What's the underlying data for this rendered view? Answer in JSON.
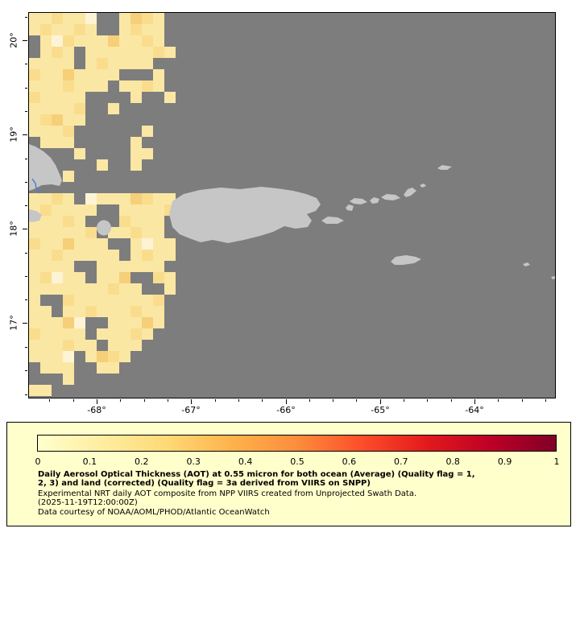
{
  "map": {
    "ocean_color": "#7d7d7d",
    "land_color": "#c6c6c6",
    "river_color": "#4d7fd0",
    "y_axis": {
      "labels": [
        "20°",
        "19°",
        "18°",
        "17°"
      ]
    },
    "x_axis": {
      "labels": [
        "-68°",
        "-67°",
        "-66°",
        "-65°",
        "-64°"
      ]
    },
    "mosaic": {
      "cell": 14,
      "palette": {
        "a": "#fdf4d5",
        "b": "#fbe7a4",
        "c": "#f9dd8d",
        "d": "#f6cf78"
      },
      "rows": [
        "bbcbba..bdcb.",
        "bcbbcb..bcbb.",
        ".bacbbbdbbcb.",
        ".bcb.bbbbbbcb",
        "bbbb.bcbbbb..",
        "cbbdbbbb...b.",
        "bbbcbbb.bbcb.",
        "cbbbb....b..b",
        "bbbbc..b.....",
        "bcdbb........",
        "bbbc......b..",
        ".bbb.....b...",
        "....b....bb..",
        "......b..b...",
        "...b.........",
        ".............",
        "bbcb.abbbdcbb",
        "bcbbbb..bbbbc",
        "bbbcb...cbbb.",
        "bbbbbc.bbcbb.",
        "cbbdbbb..babb",
        "bbcbbbbb.bcbb",
        "bbbb..bbbbbb.",
        "bcabb.bbd..cb",
        "bbbbbbbcbb..b",
        "b..cbbbbbbbc.",
        "bb.bbcbbbcbb.",
        "bbbda..bbbdb.",
        "cbbbb.bbbcb..",
        "bbbcbb.bbb...",
        "bbba.bdcb....",
        ".bbb..bb.....",
        "...b.........",
        "bb..........."
      ]
    }
  },
  "legend": {
    "background": "#ffffcc",
    "colorbar": {
      "ticks": [
        "0",
        "0.1",
        "0.2",
        "0.3",
        "0.4",
        "0.5",
        "0.6",
        "0.7",
        "0.8",
        "0.9",
        "1"
      ],
      "gradient": [
        "#ffffcc",
        "#ffeda0",
        "#fed976",
        "#feb24c",
        "#fd8d3c",
        "#fc4e2a",
        "#e31a1c",
        "#bd0026",
        "#800026"
      ]
    },
    "caption_bold_lines": [
      "Daily Aerosol Optical Thickness (AOT) at 0.55 micron for both ocean (Average) (Quality flag = 1,",
      "2, 3) and land (corrected) (Quality flag = 3a derived from VIIRS on SNPP)"
    ],
    "lines": [
      "Experimental NRT daily AOT composite from NPP VIIRS created from Unprojected Swath Data.",
      "(2025-11-19T12:00:00Z)",
      "Data courtesy of NOAA/AOML/PHOD/Atlantic OceanWatch"
    ]
  }
}
